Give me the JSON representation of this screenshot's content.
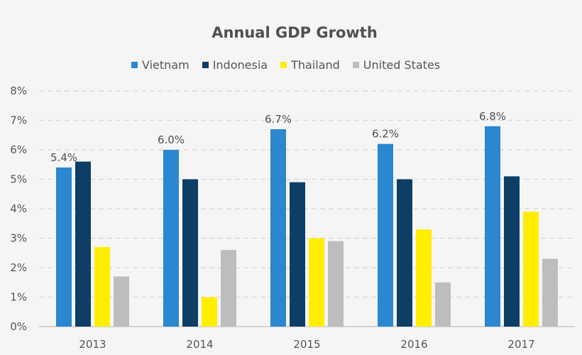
{
  "chart_data": {
    "type": "bar",
    "title": "Annual GDP Growth",
    "xlabel": "",
    "ylabel": "",
    "categories": [
      "2013",
      "2014",
      "2015",
      "2016",
      "2017"
    ],
    "ylim": [
      0,
      8
    ],
    "yticks": [
      0,
      1,
      2,
      3,
      4,
      5,
      6,
      7,
      8
    ],
    "ytick_labels": [
      "0%",
      "1%",
      "2%",
      "3%",
      "4%",
      "5%",
      "6%",
      "7%",
      "8%"
    ],
    "grid": "horizontal dashed",
    "legend_position": "top-center",
    "series": [
      {
        "name": "Vietnam",
        "color": "#2a87d0",
        "values": [
          5.4,
          6.0,
          6.7,
          6.2,
          6.8
        ],
        "data_labels": [
          "5.4%",
          "6.0%",
          "6.7%",
          "6.2%",
          "6.8%"
        ]
      },
      {
        "name": "Indonesia",
        "color": "#0e3e66",
        "values": [
          5.6,
          5.0,
          4.9,
          5.0,
          5.1
        ]
      },
      {
        "name": "Thailand",
        "color": "#ffee00",
        "values": [
          2.7,
          1.0,
          3.0,
          3.3,
          3.9
        ]
      },
      {
        "name": "United States",
        "color": "#bdbdbd",
        "values": [
          1.7,
          2.6,
          2.9,
          1.5,
          2.3
        ]
      }
    ]
  }
}
